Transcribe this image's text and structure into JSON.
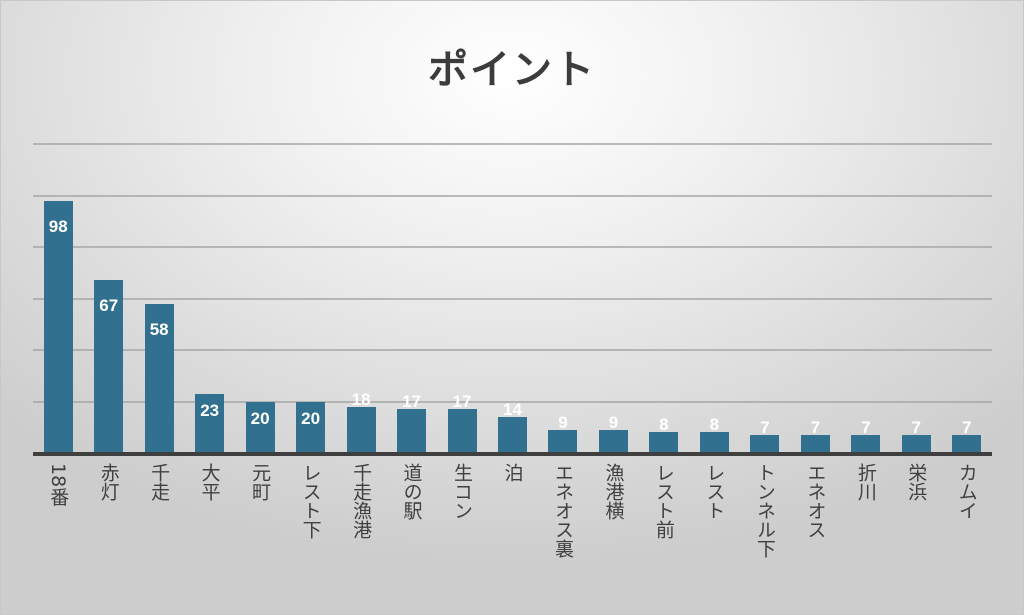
{
  "chart_data": {
    "type": "bar",
    "title": "ポイント",
    "xlabel": "",
    "ylabel": "",
    "ylim": [
      0,
      120
    ],
    "grid": true,
    "gridline_step": 20,
    "legend": "none",
    "data_labels": true,
    "bar_color": "#31708e",
    "categories": [
      "18番",
      "赤灯",
      "千走",
      "大平",
      "元町",
      "レスト下",
      "千走漁港",
      "道の駅",
      "生コン",
      "泊",
      "エネオス裏",
      "漁港横",
      "レスト前",
      "レスト",
      "トンネル下",
      "エネオス",
      "折川",
      "栄浜",
      "カムイ"
    ],
    "values": [
      98,
      67,
      58,
      23,
      20,
      20,
      18,
      17,
      17,
      14,
      9,
      9,
      8,
      8,
      7,
      7,
      7,
      7,
      7
    ],
    "value_labels": [
      "98",
      "67",
      "58",
      "23",
      "20",
      "20",
      "18",
      "17",
      "17",
      "14",
      "9",
      "9",
      "8",
      "8",
      "7",
      "7",
      "7",
      "7",
      "7"
    ]
  }
}
